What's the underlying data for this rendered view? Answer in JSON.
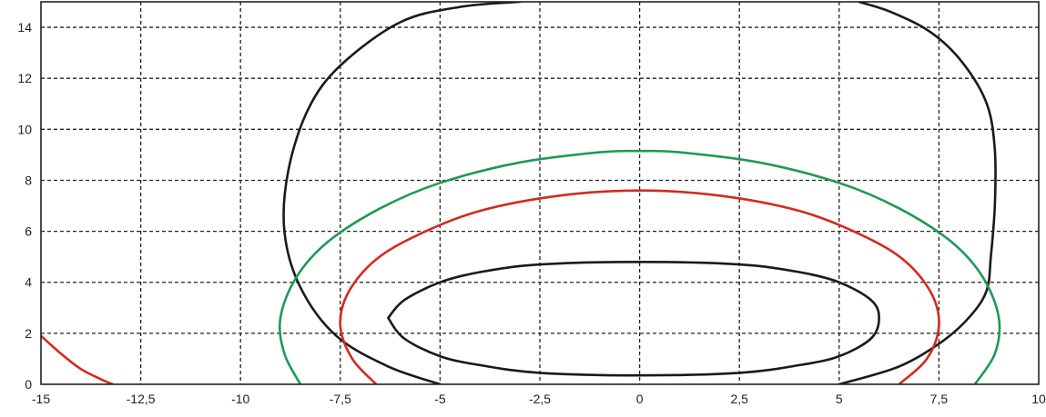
{
  "chart_data": {
    "type": "line",
    "title": "",
    "xlabel": "",
    "ylabel": "",
    "xlim": [
      -15,
      10
    ],
    "ylim": [
      0,
      15
    ],
    "grid": true,
    "x_ticks": [
      -15,
      -12.5,
      -10,
      -7.5,
      -5,
      -2.5,
      0,
      2.5,
      5,
      7.5,
      10
    ],
    "x_tick_labels": [
      "-15",
      "-12,5",
      "-10",
      "-7,5",
      "-5",
      "-2,5",
      "0",
      "2,5",
      "5",
      "7,5",
      "10"
    ],
    "y_ticks": [
      0,
      2,
      4,
      6,
      8,
      10,
      12,
      14
    ],
    "y_tick_labels": [
      "0",
      "2",
      "4",
      "6",
      "8",
      "10",
      "12",
      "14"
    ],
    "series": [
      {
        "color": "#1a1a1a",
        "x": [
          -6.3,
          -5.9,
          -5.0,
          -4.0,
          -2.5,
          0,
          2.5,
          4.0,
          5.0,
          5.8,
          6.0,
          5.8,
          5.0,
          4.0,
          2.5,
          0,
          -2.5,
          -4.0,
          -5.0,
          -5.9,
          -6.3
        ],
        "y": [
          2.6,
          1.8,
          1.1,
          0.75,
          0.45,
          0.35,
          0.45,
          0.75,
          1.1,
          1.8,
          2.6,
          3.3,
          4.0,
          4.4,
          4.7,
          4.8,
          4.7,
          4.4,
          4.0,
          3.3,
          2.6
        ]
      },
      {
        "color": "#1a1a1a",
        "x": [
          -5.0,
          -6.3,
          -7.6,
          -8.5,
          -8.9,
          -8.8,
          -8.3,
          -7.5,
          -6.0,
          -4.5,
          -3.0
        ],
        "y": [
          0,
          0.7,
          1.9,
          3.8,
          6.0,
          8.4,
          10.8,
          12.5,
          14.2,
          14.8,
          15.0
        ]
      },
      {
        "color": "#1a1a1a",
        "x": [
          5.0,
          6.5,
          7.6,
          8.3,
          8.7,
          8.8,
          8.9,
          8.9,
          8.7,
          8.1,
          7.3,
          6.3,
          5.5
        ],
        "y": [
          0,
          0.7,
          1.7,
          2.7,
          3.7,
          5.0,
          7.0,
          9.2,
          11.0,
          12.6,
          13.8,
          14.6,
          15.0
        ]
      },
      {
        "color": "#d42a1e",
        "x": [
          -6.6,
          -7.2,
          -7.5,
          -7.3,
          -6.6,
          -5.5,
          -4.0,
          -2.0,
          0,
          2.0,
          4.0,
          5.5,
          6.6,
          7.3,
          7.5,
          7.2,
          6.5
        ],
        "y": [
          0,
          1.0,
          2.3,
          3.6,
          4.9,
          5.9,
          6.8,
          7.4,
          7.6,
          7.4,
          6.8,
          5.9,
          4.9,
          3.6,
          2.3,
          1.0,
          0
        ]
      },
      {
        "color": "#d42a1e",
        "x": [
          -15.0,
          -14.5,
          -14.0,
          -13.5,
          -13.2
        ],
        "y": [
          1.9,
          1.2,
          0.6,
          0.2,
          0
        ]
      },
      {
        "color": "#1d9a55",
        "x": [
          -8.5,
          -8.9,
          -9.0,
          -8.6,
          -7.8,
          -6.5,
          -5.0,
          -3.0,
          -1.0,
          0,
          1.0,
          3.0,
          5.0,
          6.5,
          7.8,
          8.6,
          9.0,
          8.9,
          8.4
        ],
        "y": [
          0,
          1.2,
          2.6,
          4.2,
          5.6,
          6.9,
          7.9,
          8.7,
          9.1,
          9.15,
          9.1,
          8.7,
          7.9,
          6.9,
          5.6,
          4.2,
          2.6,
          1.2,
          0
        ]
      }
    ]
  }
}
